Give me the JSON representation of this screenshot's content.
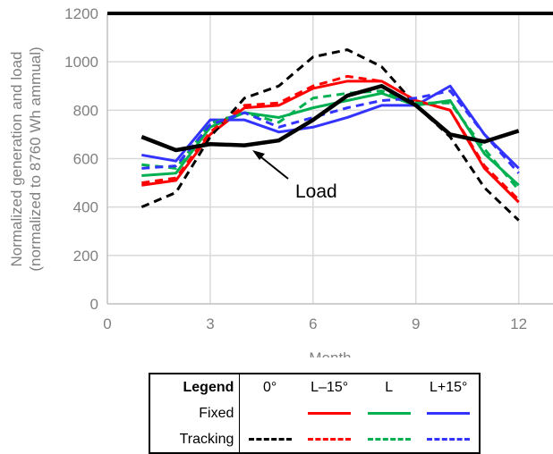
{
  "chart_data": {
    "type": "line",
    "xlabel": "Month",
    "ylabel_line1": "Normalized generation and load",
    "ylabel_line2": "(normalized to 8760 Wh ammual)",
    "xlim": [
      0,
      13
    ],
    "ylim": [
      0,
      1200
    ],
    "xticks": [
      0,
      3,
      6,
      9,
      12
    ],
    "yticks": [
      0,
      200,
      400,
      600,
      800,
      1000,
      1200
    ],
    "grid": true,
    "x": [
      1,
      2,
      3,
      4,
      5,
      6,
      7,
      8,
      9,
      10,
      11,
      12
    ],
    "series": [
      {
        "name": "Fixed L-15°",
        "color": "#ff0000",
        "dash": false,
        "values": [
          490,
          510,
          700,
          810,
          820,
          890,
          920,
          920,
          840,
          800,
          560,
          420
        ]
      },
      {
        "name": "Fixed L",
        "color": "#00b050",
        "dash": false,
        "values": [
          530,
          540,
          730,
          790,
          770,
          810,
          840,
          870,
          820,
          840,
          620,
          490
        ]
      },
      {
        "name": "Fixed L+15°",
        "color": "#3333ff",
        "dash": false,
        "values": [
          615,
          590,
          760,
          760,
          710,
          730,
          770,
          820,
          820,
          900,
          700,
          560
        ]
      },
      {
        "name": "Tracking 0°",
        "color": "#000000",
        "dash": true,
        "values": [
          400,
          460,
          690,
          850,
          900,
          1020,
          1050,
          980,
          820,
          690,
          480,
          345
        ]
      },
      {
        "name": "Tracking L-15°",
        "color": "#ff0000",
        "dash": true,
        "values": [
          500,
          520,
          710,
          820,
          830,
          900,
          940,
          920,
          840,
          800,
          570,
          430
        ]
      },
      {
        "name": "Tracking L",
        "color": "#00b050",
        "dash": true,
        "values": [
          575,
          560,
          745,
          790,
          750,
          850,
          870,
          880,
          830,
          830,
          640,
          470
        ]
      },
      {
        "name": "Tracking L+15°",
        "color": "#3333ff",
        "dash": true,
        "values": [
          560,
          570,
          740,
          790,
          730,
          770,
          810,
          840,
          850,
          880,
          700,
          540
        ]
      },
      {
        "name": "Load",
        "color": "#000000",
        "dash": false,
        "bold": true,
        "values": [
          690,
          635,
          660,
          655,
          675,
          760,
          860,
          900,
          820,
          700,
          670,
          715
        ]
      }
    ],
    "annotation": "Load",
    "legend": {
      "title": "Legend",
      "columns": [
        "0°",
        "L–15°",
        "L",
        "L+15°"
      ],
      "rows": [
        "Fixed",
        "Tracking"
      ],
      "placement": "bottom-center"
    }
  }
}
